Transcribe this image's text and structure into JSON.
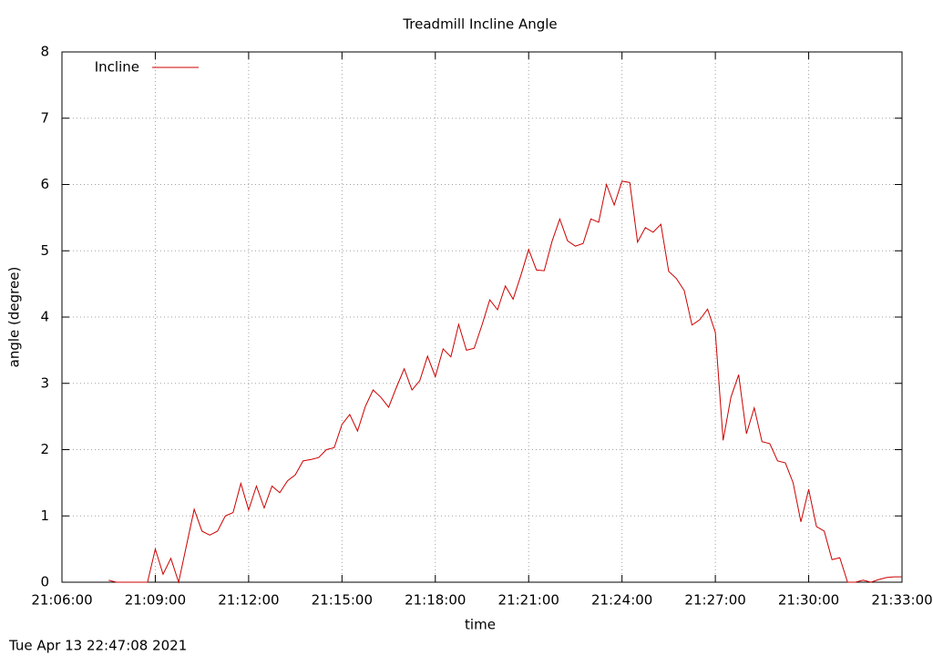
{
  "chart_data": {
    "type": "line",
    "title": "Treadmill Incline Angle",
    "x_label": "time",
    "y_label": "angle (degree)",
    "timestamp": "Tue Apr 13 22:47:08 2021",
    "x": [
      "21:07:30",
      "21:07:45",
      "21:08:00",
      "21:08:15",
      "21:08:30",
      "21:08:45",
      "21:09:00",
      "21:09:15",
      "21:09:30",
      "21:09:45",
      "21:10:00",
      "21:10:15",
      "21:10:30",
      "21:10:45",
      "21:11:00",
      "21:11:15",
      "21:11:30",
      "21:11:45",
      "21:12:00",
      "21:12:15",
      "21:12:30",
      "21:12:45",
      "21:13:00",
      "21:13:15",
      "21:13:30",
      "21:13:45",
      "21:14:00",
      "21:14:15",
      "21:14:30",
      "21:14:45",
      "21:15:00",
      "21:15:15",
      "21:15:30",
      "21:15:45",
      "21:16:00",
      "21:16:15",
      "21:16:30",
      "21:16:45",
      "21:17:00",
      "21:17:15",
      "21:17:30",
      "21:17:45",
      "21:18:00",
      "21:18:15",
      "21:18:30",
      "21:18:45",
      "21:19:00",
      "21:19:15",
      "21:19:30",
      "21:19:45",
      "21:20:00",
      "21:20:15",
      "21:20:30",
      "21:20:45",
      "21:21:00",
      "21:21:15",
      "21:21:30",
      "21:21:45",
      "21:22:00",
      "21:22:15",
      "21:22:30",
      "21:22:45",
      "21:23:00",
      "21:23:15",
      "21:23:30",
      "21:23:45",
      "21:24:00",
      "21:24:15",
      "21:24:30",
      "21:24:45",
      "21:25:00",
      "21:25:15",
      "21:25:30",
      "21:25:45",
      "21:26:00",
      "21:26:15",
      "21:26:30",
      "21:26:45",
      "21:27:00",
      "21:27:15",
      "21:27:30",
      "21:27:45",
      "21:28:00",
      "21:28:15",
      "21:28:30",
      "21:28:45",
      "21:29:00",
      "21:29:15",
      "21:29:30",
      "21:29:45",
      "21:30:00",
      "21:30:15",
      "21:30:30",
      "21:30:45",
      "21:31:00",
      "21:31:15",
      "21:31:30",
      "21:31:45",
      "21:32:00",
      "21:32:15",
      "21:32:30",
      "21:32:45",
      "21:33:00"
    ],
    "series": [
      {
        "name": "Incline",
        "color": "#cc0000",
        "values": [
          0.03,
          0,
          0,
          0,
          0,
          0,
          0.5,
          0.12,
          0.36,
          0,
          0.55,
          1.1,
          0.77,
          0.71,
          0.77,
          1.0,
          1.05,
          1.49,
          1.09,
          1.45,
          1.12,
          1.45,
          1.35,
          1.53,
          1.62,
          1.83,
          1.85,
          1.88,
          2.0,
          2.03,
          2.38,
          2.53,
          2.28,
          2.65,
          2.9,
          2.79,
          2.64,
          2.94,
          3.22,
          2.9,
          3.04,
          3.41,
          3.1,
          3.52,
          3.4,
          3.89,
          3.5,
          3.53,
          3.88,
          4.26,
          4.11,
          4.47,
          4.27,
          4.63,
          5.02,
          4.71,
          4.7,
          5.14,
          5.48,
          5.15,
          5.07,
          5.11,
          5.48,
          5.43,
          6.0,
          5.69,
          6.05,
          6.03,
          5.13,
          5.35,
          5.28,
          5.4,
          4.69,
          4.58,
          4.4,
          3.88,
          3.96,
          4.12,
          3.77,
          2.14,
          2.79,
          3.13,
          2.24,
          2.63,
          2.12,
          2.09,
          1.83,
          1.8,
          1.5,
          0.91,
          1.4,
          0.84,
          0.77,
          0.34,
          0.37,
          0,
          0,
          0.03,
          0,
          0.04,
          0.07,
          0.08,
          0.08
        ]
      }
    ],
    "xlim": [
      "21:06:00",
      "21:33:00"
    ],
    "xticks": [
      "21:06:00",
      "21:09:00",
      "21:12:00",
      "21:15:00",
      "21:18:00",
      "21:21:00",
      "21:24:00",
      "21:27:00",
      "21:30:00",
      "21:33:00"
    ],
    "ylim": [
      0,
      8
    ],
    "yticks": [
      0,
      1,
      2,
      3,
      4,
      5,
      6,
      7,
      8
    ],
    "grid": true,
    "legend": "top-left"
  }
}
